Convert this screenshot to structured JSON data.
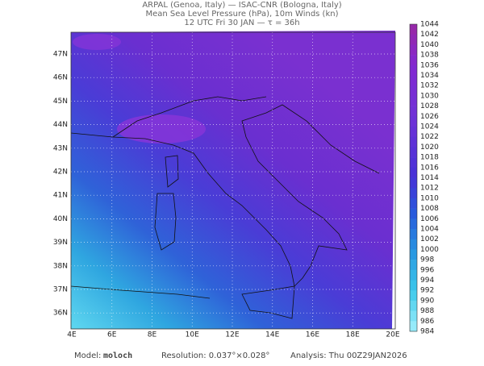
{
  "header": {
    "line1": "ARPAL (Genoa, Italy)  —  ISAC-CNR (Bologna, Italy)",
    "line2": "Mean Sea Level Pressure (hPa), 10m Winds (kn)",
    "line3": "12 UTC Fri 30 JAN  —  τ = 36h"
  },
  "lat_labels": [
    "47N",
    "46N",
    "45N",
    "44N",
    "43N",
    "42N",
    "41N",
    "40N",
    "39N",
    "38N",
    "37N",
    "36N"
  ],
  "lon_labels": [
    "4E",
    "6E",
    "8E",
    "10E",
    "12E",
    "14E",
    "16E",
    "18E",
    "20E"
  ],
  "colorbar_labels": [
    1044,
    1042,
    1040,
    1038,
    1036,
    1034,
    1032,
    1030,
    1028,
    1026,
    1024,
    1022,
    1020,
    1018,
    1016,
    1014,
    1012,
    1010,
    1008,
    1006,
    1004,
    1002,
    1000,
    998,
    996,
    994,
    992,
    990,
    988,
    986,
    984
  ],
  "footer": {
    "model_label": "Model:",
    "model": "moloch",
    "resolution": "Resolution: 0.037°×0.028°",
    "analysis": "Analysis: Thu 00Z29JAN2026"
  }
}
